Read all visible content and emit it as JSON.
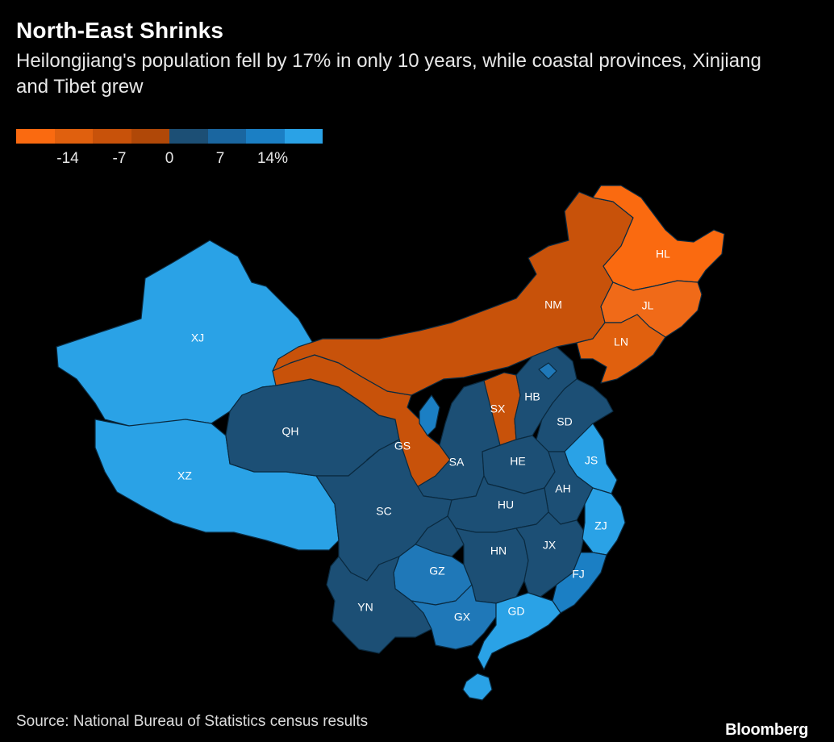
{
  "title": "North-East Shrinks",
  "subtitle": "Heilongjiang's population fell by 17% in only 10 years, while coastal provinces, Xinjiang and Tibet grew",
  "legend": {
    "colors": [
      "#fa6a10",
      "#e0600e",
      "#c8520a",
      "#b04808",
      "#1c4f75",
      "#1a66a0",
      "#1b7fc4",
      "#2aa2e6"
    ],
    "ticks": [
      "-14",
      "-7",
      "0",
      "7",
      "14%"
    ]
  },
  "provinces": [
    {
      "code": "HL",
      "color": "#fa6a10"
    },
    {
      "code": "JL",
      "color": "#f06a18"
    },
    {
      "code": "LN",
      "color": "#e0600e"
    },
    {
      "code": "NM",
      "color": "#c8520a"
    },
    {
      "code": "GS",
      "color": "#c8520a"
    },
    {
      "code": "SX",
      "color": "#c8520a"
    },
    {
      "code": "XJ",
      "color": "#2aa2e6"
    },
    {
      "code": "XZ",
      "color": "#2aa2e6"
    },
    {
      "code": "QH",
      "color": "#1c4f75"
    },
    {
      "code": "SC",
      "color": "#1c4f75"
    },
    {
      "code": "SA",
      "color": "#1c4f75"
    },
    {
      "code": "HE",
      "color": "#1c4f75"
    },
    {
      "code": "HB",
      "color": "#1c4f75"
    },
    {
      "code": "SD",
      "color": "#1c4f75"
    },
    {
      "code": "HU",
      "color": "#1c4f75"
    },
    {
      "code": "HN",
      "color": "#1c4f75"
    },
    {
      "code": "JX",
      "color": "#1c4f75"
    },
    {
      "code": "YN",
      "color": "#1c4f75"
    },
    {
      "code": "AH",
      "color": "#1c4f75"
    },
    {
      "code": "GZ",
      "color": "#1f78b8"
    },
    {
      "code": "GX",
      "color": "#1f78b8"
    },
    {
      "code": "JS",
      "color": "#2aa2e6"
    },
    {
      "code": "ZJ",
      "color": "#2aa2e6"
    },
    {
      "code": "FJ",
      "color": "#1b7fc4"
    },
    {
      "code": "GD",
      "color": "#2aa2e6"
    }
  ],
  "extras": [
    {
      "name": "ningxia",
      "color": "#1b7fc4"
    },
    {
      "name": "beijing",
      "color": "#1f78b8"
    },
    {
      "name": "hainan",
      "color": "#2aa2e6"
    }
  ],
  "source": "Source: National Bureau of Statistics census results",
  "brand": "Bloomberg"
}
